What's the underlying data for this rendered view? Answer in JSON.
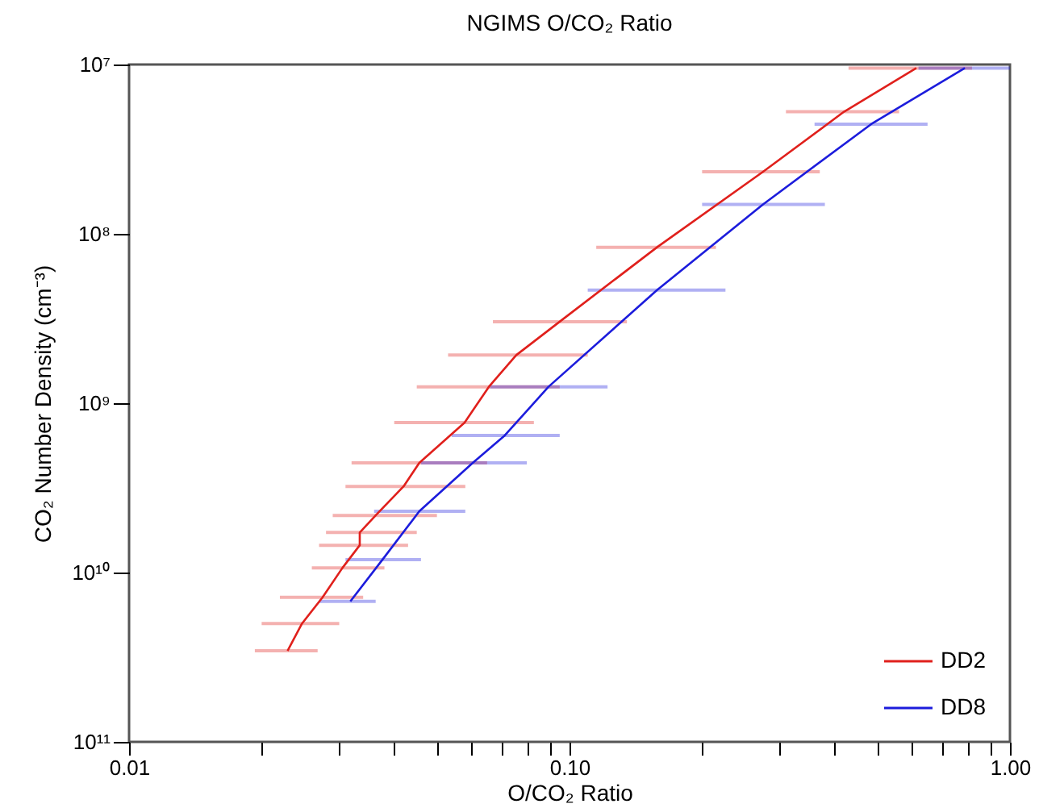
{
  "chart_data": {
    "type": "line",
    "title": "NGIMS O/CO₂  Ratio",
    "xlabel": "O/CO₂ Ratio",
    "ylabel": "CO₂ Number Density (cm⁻³)",
    "log": "xy",
    "xlim": [
      0.01,
      1.0
    ],
    "ylim": [
      100000000000.0,
      10000000.0
    ],
    "xticks": [
      {
        "value": 0.01,
        "label": "0.01"
      },
      {
        "value": 0.02,
        "label": null
      },
      {
        "value": 0.03,
        "label": null
      },
      {
        "value": 0.04,
        "label": null
      },
      {
        "value": 0.05,
        "label": null
      },
      {
        "value": 0.06,
        "label": null
      },
      {
        "value": 0.07,
        "label": null
      },
      {
        "value": 0.08,
        "label": null
      },
      {
        "value": 0.09,
        "label": null
      },
      {
        "value": 0.1,
        "label": "0.10"
      },
      {
        "value": 0.2,
        "label": null
      },
      {
        "value": 0.3,
        "label": null
      },
      {
        "value": 0.4,
        "label": null
      },
      {
        "value": 0.5,
        "label": null
      },
      {
        "value": 0.6,
        "label": null
      },
      {
        "value": 0.7,
        "label": null
      },
      {
        "value": 0.8,
        "label": null
      },
      {
        "value": 0.9,
        "label": null
      },
      {
        "value": 1.0,
        "label": "1.00"
      }
    ],
    "yticks": [
      {
        "value": 10000000.0,
        "label": "10⁷"
      },
      {
        "value": 100000000.0,
        "label": "10⁸"
      },
      {
        "value": 1000000000.0,
        "label": "10⁹"
      },
      {
        "value": 10000000000.0,
        "label": "10¹⁰"
      },
      {
        "value": 100000000000.0,
        "label": "10¹¹"
      }
    ],
    "legend": "bottom right",
    "series": [
      {
        "name": "DD2",
        "color": "#e0201c",
        "x": [
          0.0229,
          0.0247,
          0.0275,
          0.0305,
          0.0334,
          0.0334,
          0.0363,
          0.042,
          0.0456,
          0.0578,
          0.0656,
          0.0757,
          0.095,
          0.158,
          0.275,
          0.42,
          0.613
        ],
        "values": [
          29000000000.0,
          20000000000.0,
          14000000000.0,
          9400000000.0,
          6900000000.0,
          5800000000.0,
          4600000000.0,
          3100000000.0,
          2250000000.0,
          1300000000.0,
          800000000.0,
          520000000.0,
          330000000.0,
          120000000.0,
          43000000.0,
          19000000.0,
          10500000.0
        ],
        "xerrors": [
          [
            0.0193,
            0.0268
          ],
          [
            0.02,
            0.03
          ],
          [
            0.022,
            0.034
          ],
          [
            0.026,
            0.038
          ],
          [
            0.027,
            0.043
          ],
          [
            0.028,
            0.045
          ],
          [
            0.029,
            0.05
          ],
          [
            0.031,
            0.058
          ],
          [
            0.032,
            0.065
          ],
          [
            0.04,
            0.083
          ],
          [
            0.045,
            0.095
          ],
          [
            0.053,
            0.11
          ],
          [
            0.067,
            0.135
          ],
          [
            0.115,
            0.215
          ],
          [
            0.2,
            0.37
          ],
          [
            0.31,
            0.56
          ],
          [
            0.43,
            0.82
          ]
        ]
      },
      {
        "name": "DD8",
        "color": "#1c1cdc",
        "x": [
          0.0318,
          0.0376,
          0.0456,
          0.0603,
          0.0713,
          0.0896,
          0.158,
          0.275,
          0.484,
          0.79
        ],
        "values": [
          14800000000.0,
          8400000000.0,
          4350000000.0,
          2250000000.0,
          1550000000.0,
          800000000.0,
          215000000.0,
          67000000.0,
          22500000.0,
          10500000.0
        ],
        "xerrors": [
          [
            0.027,
            0.0363
          ],
          [
            0.031,
            0.046
          ],
          [
            0.036,
            0.058
          ],
          [
            0.046,
            0.08
          ],
          [
            0.054,
            0.095
          ],
          [
            0.066,
            0.122
          ],
          [
            0.11,
            0.226
          ],
          [
            0.2,
            0.38
          ],
          [
            0.36,
            0.65
          ],
          [
            0.62,
            1.0
          ]
        ]
      }
    ]
  }
}
